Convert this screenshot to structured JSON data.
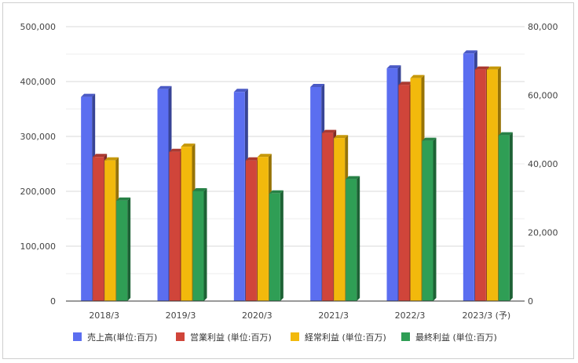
{
  "chart_data": {
    "type": "bar",
    "categories": [
      "2018/3",
      "2019/3",
      "2020/3",
      "2021/3",
      "2022/3",
      "2023/3 (予)"
    ],
    "series": [
      {
        "name": "売上高(単位:百万)",
        "axis": "left",
        "color": "#5b6ef0",
        "values": [
          372000,
          386000,
          381000,
          390000,
          424000,
          451000
        ]
      },
      {
        "name": "営業利益 (単位:百万)",
        "axis": "right",
        "color": "#d0453a",
        "values": [
          42000,
          43500,
          41000,
          49000,
          63000,
          67500
        ]
      },
      {
        "name": "経常利益 (単位:百万)",
        "axis": "right",
        "color": "#f2b90c",
        "values": [
          41000,
          45000,
          42000,
          47500,
          65000,
          67500
        ]
      },
      {
        "name": "最終利益 (単位:百万)",
        "axis": "left",
        "color": "#2f9e55",
        "values": [
          183000,
          200000,
          196000,
          222000,
          292000,
          302000
        ]
      }
    ],
    "y_left": {
      "lim": [
        0,
        500000
      ],
      "ticks": [
        "0",
        "100,000",
        "200,000",
        "300,000",
        "400,000",
        "500,000"
      ]
    },
    "y_right": {
      "lim": [
        0,
        80000
      ],
      "ticks": [
        "0",
        "20,000",
        "40,000",
        "60,000",
        "80,000"
      ]
    },
    "grid": true,
    "legend": "bottom"
  }
}
